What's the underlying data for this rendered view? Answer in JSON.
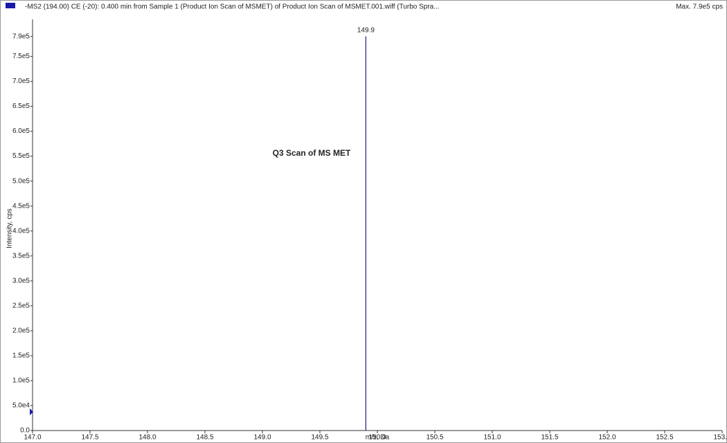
{
  "chart_data": {
    "type": "spectrum",
    "title": "-MS2 (194.00) CE (-20): 0.400 min from Sample 1 (Product Ion Scan of MSMET) of Product Ion Scan of MSMET.001.wiff (Turbo Spra...",
    "max_label": "Max. 7.9e5 cps",
    "annotation": "Q3 Scan of MS MET",
    "x_label": "m/z, Da",
    "y_label": "Intensity, cps",
    "x": [
      149.9
    ],
    "series": [
      {
        "color": "#1c1c7a",
        "values": [
          790000
        ]
      }
    ],
    "xlim": [
      147.0,
      153.0
    ],
    "xticks": [
      {
        "value": 147,
        "label": "147.0"
      },
      {
        "value": 147.5,
        "label": "147.5"
      },
      {
        "value": 148,
        "label": "148.0"
      },
      {
        "value": 148.5,
        "label": "148.5"
      },
      {
        "value": 149,
        "label": "149.0"
      },
      {
        "value": 149.5,
        "label": "149.5"
      },
      {
        "value": 150,
        "label": "150.0"
      },
      {
        "value": 150.5,
        "label": "150.5"
      },
      {
        "value": 151,
        "label": "151.0"
      },
      {
        "value": 151.5,
        "label": "151.5"
      },
      {
        "value": 152,
        "label": "152.0"
      },
      {
        "value": 152.5,
        "label": "152.5"
      },
      {
        "value": 153,
        "label": "153.0"
      }
    ],
    "ylim": [
      0,
      820000
    ],
    "yticks": [
      {
        "value": 0,
        "label": "0.0"
      },
      {
        "value": 50000,
        "label": "5.0e4"
      },
      {
        "value": 100000,
        "label": "1.0e5"
      },
      {
        "value": 150000,
        "label": "1.5e5"
      },
      {
        "value": 200000,
        "label": "2.0e5"
      },
      {
        "value": 250000,
        "label": "2.5e5"
      },
      {
        "value": 300000,
        "label": "3.0e5"
      },
      {
        "value": 350000,
        "label": "3.5e5"
      },
      {
        "value": 400000,
        "label": "4.0e5"
      },
      {
        "value": 450000,
        "label": "4.5e5"
      },
      {
        "value": 500000,
        "label": "5.0e5"
      },
      {
        "value": 550000,
        "label": "5.5e5"
      },
      {
        "value": 600000,
        "label": "6.0e5"
      },
      {
        "value": 650000,
        "label": "6.5e5"
      },
      {
        "value": 700000,
        "label": "7.0e5"
      },
      {
        "value": 750000,
        "label": "7.5e5"
      },
      {
        "value": 790000,
        "label": "7.9e5"
      }
    ],
    "grid": false
  }
}
